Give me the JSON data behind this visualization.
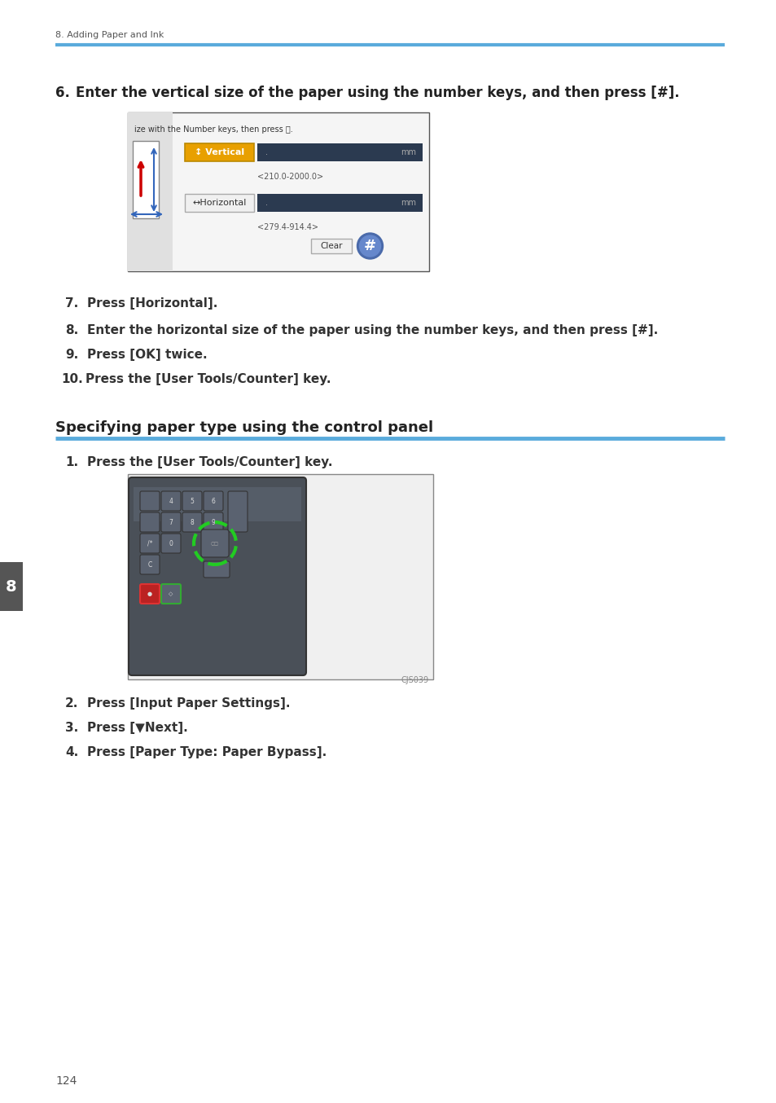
{
  "page_number": "124",
  "header_text": "8. Adding Paper and Ink",
  "header_line_color": "#5aabdc",
  "bg_color": "#ffffff",
  "section_title": "Specifying paper type using the control panel",
  "section_line_color": "#5aabdc",
  "step6_text": "Enter the vertical size of the paper using the number keys, and then press [#].",
  "step7_text": "Press [Horizontal].",
  "step8_text": "Enter the horizontal size of the paper using the number keys, and then press [#].",
  "step9_text": "Press [OK] twice.",
  "step10_text": "Press the [User Tools/Counter] key.",
  "step1_text": "Press the [User Tools/Counter] key.",
  "step2_text": "Press [Input Paper Settings].",
  "step3_text": "Press [▼Next].",
  "step4_text": "Press [Paper Type: Paper Bypass].",
  "tab_number": "8",
  "tab_bg": "#555555",
  "tab_text_color": "#ffffff",
  "caption_cjs039": "CJS039",
  "dialog_header": "ize with the Number keys, then press Ⓒ.",
  "vertical_range": "<210.0-2000.0>",
  "horizontal_range": "<279.4-914.4>",
  "vertical_label": "↕ Vertical",
  "horizontal_label": "↔Horizontal"
}
